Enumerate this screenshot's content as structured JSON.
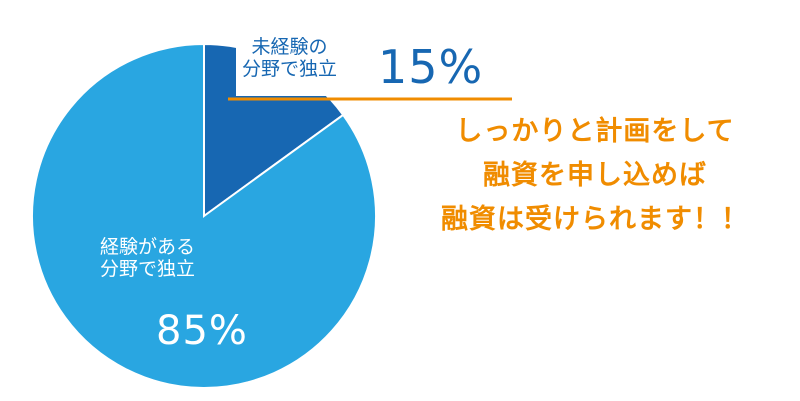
{
  "chart_data": {
    "type": "pie",
    "slices": [
      {
        "label_line1": "未経験の",
        "label_line2": "分野で独立",
        "value": 15,
        "value_label": "15%",
        "color": "#1767b2"
      },
      {
        "label_line1": "経験がある",
        "label_line2": "分野で独立",
        "value": 85,
        "value_label": "85%",
        "color": "#29a6e1"
      }
    ]
  },
  "callout": {
    "lines": [
      "しっかりと計画をして",
      "融資を申し込めば",
      "融資は受けられます！！"
    ],
    "color": "#f08c00"
  },
  "leader_line_color": "#f08c00"
}
